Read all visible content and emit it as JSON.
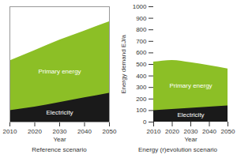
{
  "chart_data": [
    {
      "type": "area",
      "title": "Reference scenario",
      "xlabel": "Year",
      "x": [
        2010,
        2020,
        2030,
        2040,
        2050
      ],
      "xlim": [
        2010,
        2050
      ],
      "xticks": [
        2010,
        2020,
        2030,
        2040,
        2050
      ],
      "ylim": [
        0,
        1000
      ],
      "tick_labels": "x",
      "stacked": false,
      "series": [
        {
          "name": "Primary energy",
          "color": "#8cbf26",
          "values": [
            530,
            620,
            710,
            790,
            870
          ]
        },
        {
          "name": "Electricity",
          "color": "#1a1a1a",
          "values": [
            100,
            130,
            170,
            210,
            250
          ]
        }
      ]
    },
    {
      "type": "area",
      "title": "Energy (r)evolution scenario",
      "xlabel": "Year",
      "ylabel": "Energy demand EJ/a",
      "x": [
        2010,
        2020,
        2030,
        2040,
        2050
      ],
      "xlim": [
        2010,
        2050
      ],
      "xticks": [
        2010,
        2020,
        2030,
        2040,
        2050
      ],
      "ylim": [
        0,
        1000
      ],
      "yticks": [
        0,
        100,
        200,
        300,
        400,
        500,
        600,
        700,
        800,
        900,
        1000
      ],
      "stacked": false,
      "series": [
        {
          "name": "Primary energy",
          "color": "#8cbf26",
          "values": [
            520,
            535,
            515,
            490,
            460
          ]
        },
        {
          "name": "Electricity",
          "color": "#1a1a1a",
          "values": [
            100,
            110,
            120,
            130,
            140
          ]
        }
      ]
    }
  ]
}
